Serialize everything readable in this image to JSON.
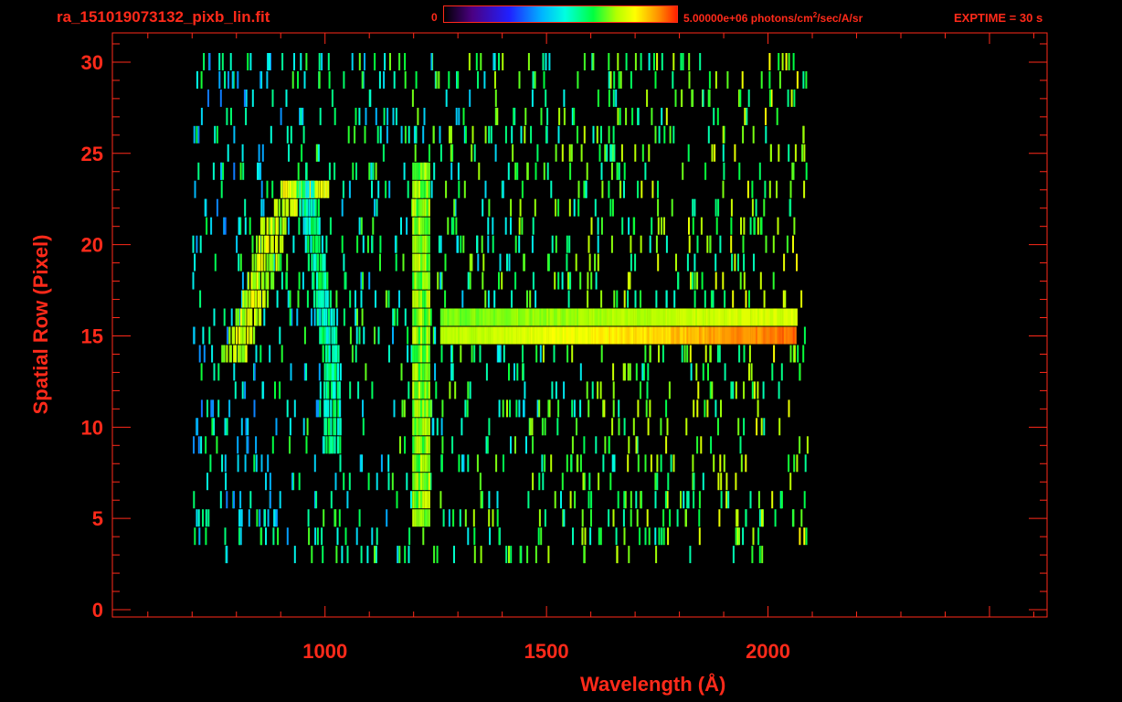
{
  "header": {
    "title": "ra_151019073132_pixb_lin.fit",
    "colorbar_min": "0",
    "colorbar_max_value": "5.00000e+06 photons/cm",
    "colorbar_max_exp": "2",
    "colorbar_max_tail": "/sec/A/sr",
    "exptime": "EXPTIME = 30 s"
  },
  "colors": {
    "axis": "#ff2a1a",
    "background": "#000000"
  },
  "chart_data": {
    "type": "heatmap",
    "title": "ra_151019073132_pixb_lin.fit",
    "xlabel": "Wavelength (Å)",
    "ylabel": "Spatial Row (Pixel)",
    "xlim": [
      520,
      2630
    ],
    "ylim": [
      -0.4,
      31.6
    ],
    "x_ticks": [
      1000,
      1500,
      2000
    ],
    "y_ticks": [
      0,
      5,
      10,
      15,
      20,
      25,
      30
    ],
    "colorbar": {
      "min": 0,
      "max": 5000000,
      "units": "photons/cm^2/sec/A/sr",
      "colormap": "rainbow"
    },
    "features": [
      {
        "kind": "arc",
        "x_start": 790,
        "x_peak": 955,
        "x_end": 1015,
        "row_start": 14,
        "row_peak": 23,
        "row_end": 9
      },
      {
        "kind": "vertical_line",
        "x": 1215,
        "rows": [
          5,
          24
        ]
      },
      {
        "kind": "horizontal_band",
        "row_lower": 15,
        "row_upper": 16,
        "x_start": 1260,
        "x_end": 2060
      }
    ]
  }
}
